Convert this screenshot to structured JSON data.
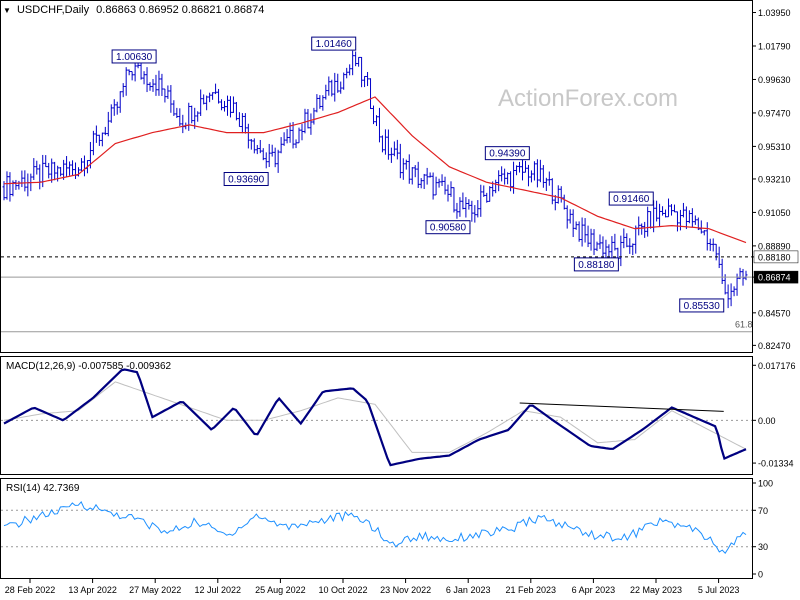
{
  "header": {
    "symbol": "USDCHF,Daily",
    "ohlc": "0.86863 0.86952 0.86821 0.86874"
  },
  "watermark": "ActionForex.com",
  "colors": {
    "price_bars": "#0000c8",
    "ma": "#e02020",
    "macd_line": "#000080",
    "signal_line": "#c0c0c0",
    "rsi": "#1e90ff",
    "label_border": "#000080",
    "current_price_box": "#000000"
  },
  "chart_data": [
    {
      "type": "line",
      "name": "price",
      "x_tick_labels": [
        "28 Feb 2022",
        "13 Apr 2022",
        "27 May 2022",
        "12 Jul 2022",
        "25 Aug 2022",
        "10 Oct 2022",
        "23 Nov 2022",
        "6 Jan 2023",
        "21 Feb 2023",
        "6 Apr 2023",
        "22 May 2023",
        "5 Jul 2023"
      ],
      "y_tick_labels": [
        "1.03950",
        "1.01790",
        "0.99630",
        "0.97470",
        "0.95310",
        "0.93210",
        "0.91050",
        "0.88890",
        "0.88180",
        "0.86874",
        "0.84570",
        "0.82470"
      ],
      "ylim": [
        0.823,
        1.045
      ],
      "key_levels": [
        {
          "label": "1.00630",
          "value": 1.0063,
          "t": 0.205
        },
        {
          "label": "0.93690",
          "value": 0.9369,
          "t": 0.356
        },
        {
          "label": "1.01460",
          "value": 1.0146,
          "t": 0.474
        },
        {
          "label": "0.90580",
          "value": 0.9058,
          "t": 0.628
        },
        {
          "label": "0.94390",
          "value": 0.9439,
          "t": 0.708
        },
        {
          "label": "0.88180",
          "value": 0.8818,
          "t": 0.828
        },
        {
          "label": "0.91460",
          "value": 0.9146,
          "t": 0.875
        },
        {
          "label": "0.85530",
          "value": 0.8553,
          "t": 0.97
        }
      ],
      "horizontal_levels": [
        {
          "label": "0.88180",
          "value": 0.8818,
          "style": "dashed"
        },
        {
          "label": "0.86874",
          "value": 0.86874,
          "style": "solid"
        },
        {
          "label": "61.8",
          "value": 0.8335,
          "style": "solid"
        }
      ],
      "series": [
        {
          "name": "close",
          "t": [
            0,
            0.05,
            0.1,
            0.15,
            0.17,
            0.205,
            0.24,
            0.28,
            0.31,
            0.356,
            0.4,
            0.44,
            0.474,
            0.49,
            0.51,
            0.55,
            0.6,
            0.628,
            0.66,
            0.708,
            0.74,
            0.78,
            0.828,
            0.875,
            0.9,
            0.94,
            0.96,
            0.97,
            1.0
          ],
          "values": [
            0.927,
            0.935,
            0.94,
            0.975,
            1.004,
            0.995,
            0.97,
            0.99,
            0.978,
            0.942,
            0.965,
            0.99,
            1.008,
            0.99,
            0.955,
            0.935,
            0.922,
            0.908,
            0.93,
            0.938,
            0.925,
            0.895,
            0.884,
            0.908,
            0.912,
            0.9,
            0.885,
            0.858,
            0.869
          ]
        },
        {
          "name": "ma",
          "t": [
            0,
            0.05,
            0.1,
            0.15,
            0.2,
            0.25,
            0.3,
            0.35,
            0.4,
            0.45,
            0.5,
            0.55,
            0.6,
            0.65,
            0.7,
            0.75,
            0.8,
            0.85,
            0.9,
            0.95,
            1.0
          ],
          "values": [
            0.929,
            0.93,
            0.935,
            0.955,
            0.962,
            0.967,
            0.962,
            0.962,
            0.968,
            0.975,
            0.985,
            0.96,
            0.94,
            0.93,
            0.925,
            0.92,
            0.908,
            0.9,
            0.902,
            0.9,
            0.891
          ]
        }
      ]
    },
    {
      "type": "line",
      "name": "MACD(12,26,9)",
      "legend": "MACD(12,26,9) -0.007585 -0.009362",
      "y_tick_labels": [
        "0.017176",
        "0.00",
        "-0.01334"
      ],
      "ylim": [
        -0.0155,
        0.0182
      ],
      "trendline": {
        "t": [
          0.695,
          0.97
        ],
        "values": [
          0.0054,
          0.0028
        ]
      },
      "series": [
        {
          "name": "macd",
          "t": [
            0,
            0.04,
            0.08,
            0.12,
            0.16,
            0.18,
            0.2,
            0.24,
            0.28,
            0.31,
            0.34,
            0.37,
            0.4,
            0.43,
            0.47,
            0.49,
            0.52,
            0.56,
            0.6,
            0.64,
            0.68,
            0.71,
            0.74,
            0.79,
            0.82,
            0.86,
            0.9,
            0.93,
            0.96,
            0.97,
            0.98,
            1.0
          ],
          "values": [
            -0.001,
            0.004,
            0.0,
            0.007,
            0.016,
            0.015,
            0.001,
            0.006,
            -0.003,
            0.004,
            -0.005,
            0.007,
            -0.001,
            0.009,
            0.01,
            0.006,
            -0.014,
            -0.012,
            -0.011,
            -0.006,
            -0.003,
            0.005,
            0.0,
            -0.008,
            -0.009,
            -0.003,
            0.004,
            0.001,
            -0.002,
            -0.012,
            -0.011,
            -0.009
          ]
        },
        {
          "name": "signal",
          "t": [
            0,
            0.05,
            0.1,
            0.15,
            0.2,
            0.25,
            0.3,
            0.35,
            0.4,
            0.45,
            0.5,
            0.55,
            0.6,
            0.65,
            0.7,
            0.75,
            0.8,
            0.85,
            0.9,
            0.95,
            1.0
          ],
          "values": [
            0.0,
            0.002,
            0.003,
            0.012,
            0.008,
            0.004,
            0.0,
            0.0,
            0.003,
            0.007,
            0.005,
            -0.01,
            -0.01,
            -0.004,
            0.003,
            0.001,
            -0.007,
            -0.006,
            0.003,
            -0.003,
            -0.009
          ]
        }
      ]
    },
    {
      "type": "line",
      "name": "RSI(14)",
      "legend": "RSI(14) 42.7369",
      "y_tick_labels": [
        "100",
        "70",
        "30",
        "0"
      ],
      "ylim": [
        0,
        100
      ],
      "levels": [
        70,
        30
      ],
      "series": [
        {
          "name": "rsi",
          "t": [
            0,
            0.04,
            0.08,
            0.1,
            0.14,
            0.18,
            0.22,
            0.26,
            0.3,
            0.34,
            0.38,
            0.42,
            0.46,
            0.49,
            0.52,
            0.56,
            0.6,
            0.64,
            0.68,
            0.72,
            0.76,
            0.8,
            0.84,
            0.88,
            0.92,
            0.95,
            0.97,
            0.99,
            1.0
          ],
          "values": [
            50,
            62,
            70,
            78,
            68,
            60,
            45,
            58,
            42,
            64,
            52,
            58,
            64,
            58,
            32,
            42,
            38,
            44,
            48,
            62,
            52,
            42,
            40,
            58,
            52,
            38,
            22,
            40,
            43
          ]
        }
      ]
    }
  ]
}
